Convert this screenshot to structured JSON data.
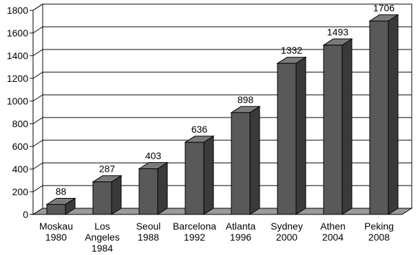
{
  "chart_data": {
    "type": "bar",
    "style": "3d-column",
    "categories": [
      [
        "Moskau",
        "1980"
      ],
      [
        "Los",
        "Angeles",
        "1984"
      ],
      [
        "Seoul",
        "1988"
      ],
      [
        "Barcelona",
        "1992"
      ],
      [
        "Atlanta",
        "1996"
      ],
      [
        "Sydney",
        "2000"
      ],
      [
        "Athen",
        "2004"
      ],
      [
        "Peking",
        "2008"
      ]
    ],
    "values": [
      88,
      287,
      403,
      636,
      898,
      1332,
      1493,
      1706
    ],
    "data_labels": [
      "88",
      "287",
      "403",
      "636",
      "898",
      "1332",
      "1493",
      "1706"
    ],
    "ylim": [
      0,
      1800
    ],
    "yticks": [
      0,
      200,
      400,
      600,
      800,
      1000,
      1200,
      1400,
      1600,
      1800
    ],
    "grid": true,
    "legend": false,
    "colors": {
      "bar_front": "#595959",
      "bar_side": "#3a3a3a",
      "bar_top": "#7a7a7a",
      "floor": "#9a9a9a",
      "wall": "#ffffff",
      "gridline": "#000000"
    }
  }
}
